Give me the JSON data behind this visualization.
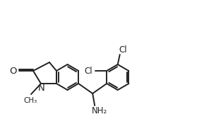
{
  "bg_color": "#ffffff",
  "bond_color": "#222222",
  "text_color": "#222222",
  "line_width": 1.4,
  "font_size": 8.5,
  "figsize": [
    2.89,
    1.92
  ],
  "dpi": 100,
  "xlim": [
    0,
    289
  ],
  "ylim": [
    192,
    0
  ]
}
